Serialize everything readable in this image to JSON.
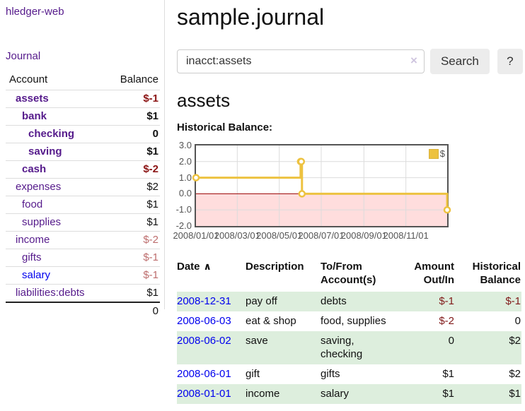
{
  "app": {
    "title": "hledger-web"
  },
  "sidebar": {
    "journal_link": "Journal",
    "accounts_table": {
      "account_header": "Account",
      "balance_header": "Balance",
      "rows": [
        {
          "account": "assets",
          "balance": "$-1",
          "depth": 1,
          "in_account": true
        },
        {
          "account": "bank",
          "balance": "$1",
          "depth": 2,
          "in_account": true
        },
        {
          "account": "checking",
          "balance": "0",
          "depth": 3,
          "in_account": true
        },
        {
          "account": "saving",
          "balance": "$1",
          "depth": 3,
          "in_account": true
        },
        {
          "account": "cash",
          "balance": "$-2",
          "depth": 2,
          "in_account": true
        },
        {
          "account": "expenses",
          "balance": "$2",
          "depth": 1
        },
        {
          "account": "food",
          "balance": "$1",
          "depth": 2
        },
        {
          "account": "supplies",
          "balance": "$1",
          "depth": 2
        },
        {
          "account": "income",
          "balance": "$-2",
          "depth": 1
        },
        {
          "account": "gifts",
          "balance": "$-1",
          "depth": 2
        },
        {
          "account": "salary",
          "balance": "$-1",
          "depth": 2,
          "unvisited": true
        },
        {
          "account": "liabilities:debts",
          "balance": "$1",
          "depth": 1
        }
      ],
      "total": "0"
    }
  },
  "header": {
    "title": "sample.journal"
  },
  "search": {
    "value": "inacct:assets",
    "clear_icon": "×",
    "search_button": "Search",
    "help_button": "?"
  },
  "account_page": {
    "heading": "assets",
    "chart_title": "Historical Balance:"
  },
  "chart_data": {
    "type": "line",
    "step": true,
    "title": "Historical Balance",
    "x_range": [
      "2008/01/01",
      "2008/12/31"
    ],
    "ylim": [
      -2,
      3
    ],
    "series": [
      {
        "name": "$",
        "color": "#edc240",
        "points": [
          [
            "2008/01/01",
            1
          ],
          [
            "2008/06/01",
            2
          ],
          [
            "2008/06/02",
            2
          ],
          [
            "2008/06/03",
            0
          ],
          [
            "2008/12/31",
            -1
          ]
        ]
      }
    ],
    "x_ticks": [
      "2008/01/01",
      "2008/03/01",
      "2008/05/01",
      "2008/07/01",
      "2008/09/01",
      "2008/11/01"
    ],
    "y_ticks": [
      "3.0",
      "2.0",
      "1.0",
      "0.0",
      "-1.0",
      "-2.0"
    ],
    "grid_on": true,
    "grid_color": "#dcdcdc",
    "border_color": "#545454",
    "negative_region_color": "#ffdddd",
    "zero_line_color": "#990000",
    "marker_fill": "#ffffff",
    "legend_label": "$",
    "legend_position": "top-right"
  },
  "register": {
    "headers": {
      "date": "Date",
      "sort_indicator": "∧",
      "description": "Description",
      "accounts": "To/From Account(s)",
      "amount": "Amount Out/In",
      "balance": "Historical Balance"
    },
    "rows": [
      {
        "date": "2008-12-31",
        "description": "pay off",
        "accounts": "debts",
        "amount": "$-1",
        "balance": "$-1"
      },
      {
        "date": "2008-06-03",
        "description": "eat & shop",
        "accounts": "food, supplies",
        "amount": "$-2",
        "balance": "0"
      },
      {
        "date": "2008-06-02",
        "description": "save",
        "accounts": "saving, checking",
        "amount": "0",
        "balance": "$2"
      },
      {
        "date": "2008-06-01",
        "description": "gift",
        "accounts": "gifts",
        "amount": "$1",
        "balance": "$2"
      },
      {
        "date": "2008-01-01",
        "description": "income",
        "accounts": "salary",
        "amount": "$1",
        "balance": "$1"
      }
    ]
  }
}
